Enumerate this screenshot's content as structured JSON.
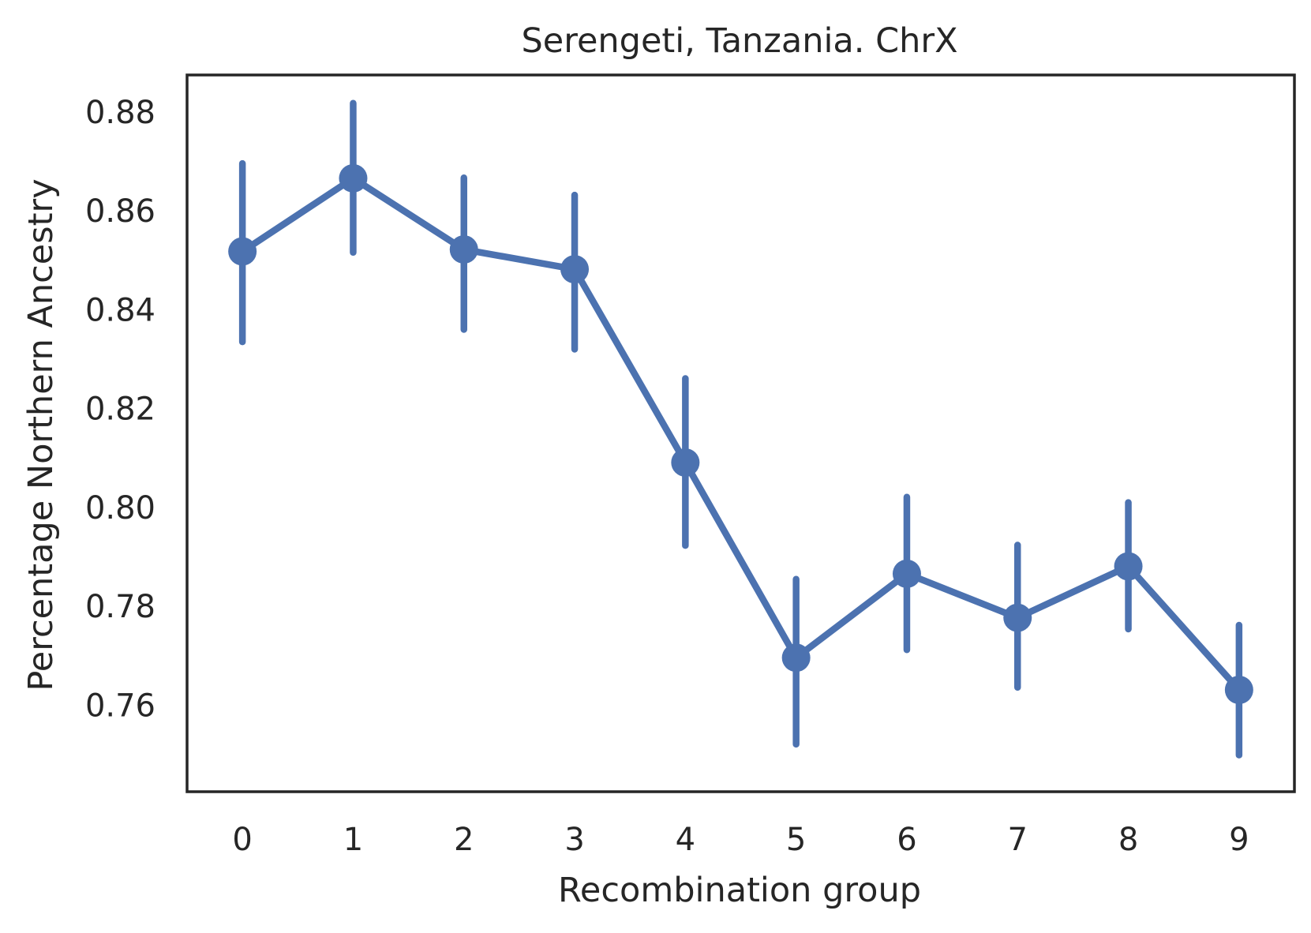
{
  "chart_data": {
    "type": "line",
    "title": "Serengeti, Tanzania. ChrX",
    "xlabel": "Recombination group",
    "ylabel": "Percentage Northern Ancestry",
    "categories": [
      "0",
      "1",
      "2",
      "3",
      "4",
      "5",
      "6",
      "7",
      "8",
      "9"
    ],
    "y_ticks": [
      "0.76",
      "0.78",
      "0.80",
      "0.82",
      "0.84",
      "0.86",
      "0.88"
    ],
    "ylim": [
      0.7425,
      0.8875
    ],
    "grid": false,
    "error_bars": true,
    "series": [
      {
        "values": [
          0.8518,
          0.8666,
          0.8522,
          0.8482,
          0.8091,
          0.7696,
          0.7866,
          0.7777,
          0.7881,
          0.7631
        ],
        "error_low": [
          0.8335,
          0.8516,
          0.836,
          0.832,
          0.7923,
          0.7521,
          0.7712,
          0.7636,
          0.7754,
          0.7499
        ],
        "error_high": [
          0.8696,
          0.8818,
          0.8667,
          0.8632,
          0.8261,
          0.7855,
          0.8021,
          0.7924,
          0.801,
          0.7762
        ],
        "color": "#4c72b0"
      }
    ],
    "frame_color": "#262626"
  }
}
